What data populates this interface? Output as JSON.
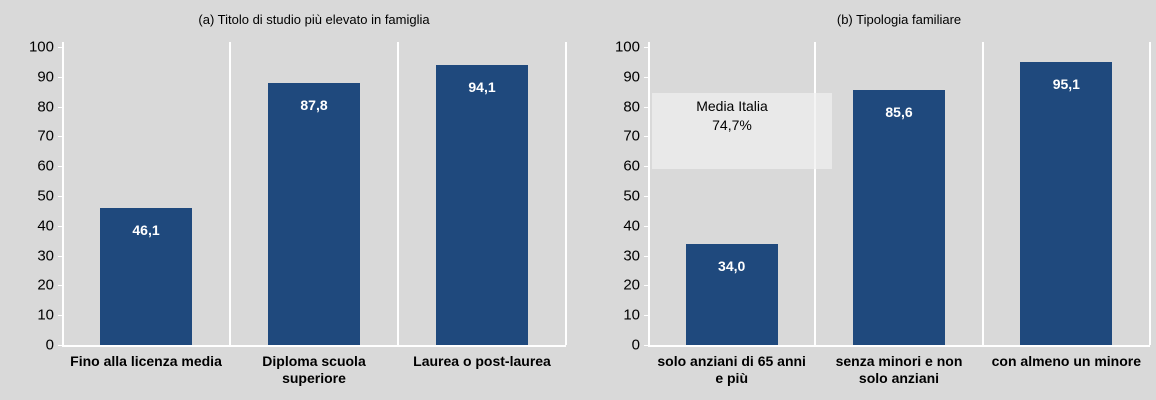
{
  "chart_data": [
    {
      "type": "bar",
      "title": "(a) Titolo di studio più elevato in famiglia",
      "categories": [
        "Fino alla licenza media",
        "Diploma scuola superiore",
        "Laurea o post-laurea"
      ],
      "values": [
        46.1,
        87.8,
        94.1
      ],
      "value_labels": [
        "46,1",
        "87,8",
        "94,1"
      ],
      "color": "#1f497d",
      "ylim": [
        0,
        100
      ],
      "yticks": [
        0,
        10,
        20,
        30,
        40,
        50,
        60,
        70,
        80,
        90,
        100
      ],
      "grid": false
    },
    {
      "type": "bar",
      "title": "(b) Tipologia familiare",
      "categories": [
        "solo anziani di 65 anni e più",
        "senza minori e non solo anziani",
        "con almeno un minore"
      ],
      "values": [
        34.0,
        85.6,
        95.1
      ],
      "value_labels": [
        "34,0",
        "85,6",
        "95,1"
      ],
      "color": "#1f497d",
      "ylim": [
        0,
        100
      ],
      "yticks": [
        0,
        10,
        20,
        30,
        40,
        50,
        60,
        70,
        80,
        90,
        100
      ],
      "grid": false,
      "annotation": [
        "Media Italia",
        "74,7%"
      ]
    }
  ]
}
